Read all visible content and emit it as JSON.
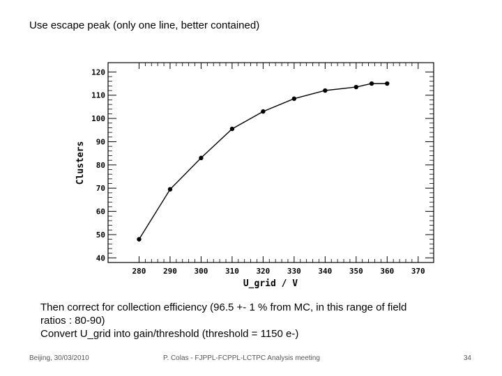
{
  "slide": {
    "title": "Use escape peak (only one line, better contained)",
    "body_lines": [
      "Then correct for collection efficiency (96.5 +- 1 % from MC, in this range of field",
      "ratios : 80-90)",
      "Convert U_grid into gain/threshold (threshold = 1150 e-)"
    ],
    "footer": {
      "left": "Beijing, 30/03/2010",
      "center": "P. Colas  - FJPPL-FCPPL-LCTPC Analysis meeting",
      "page_number": "34"
    }
  },
  "chart_data": {
    "type": "line",
    "title": "",
    "xlabel": "U_grid / V",
    "ylabel": "Clusters",
    "xlim": [
      270,
      375
    ],
    "ylim": [
      38,
      124
    ],
    "xticks": [
      280,
      290,
      300,
      310,
      320,
      330,
      340,
      350,
      360,
      370
    ],
    "yticks": [
      40,
      50,
      60,
      70,
      80,
      90,
      100,
      110,
      120
    ],
    "grid": false,
    "series": [
      {
        "name": "Clusters",
        "x": [
          280,
          290,
          300,
          310,
          320,
          330,
          340,
          350,
          355,
          360
        ],
        "y": [
          48,
          69.5,
          83,
          95.5,
          103,
          108.5,
          112,
          113.5,
          115,
          115
        ]
      }
    ]
  }
}
